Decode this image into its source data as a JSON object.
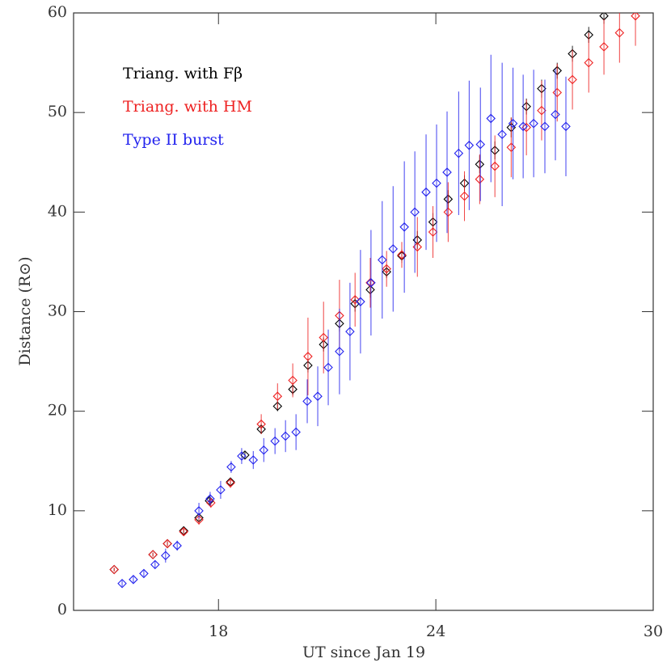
{
  "chart_data": {
    "type": "errorbar-scatter",
    "xlabel": "UT since Jan 19",
    "ylabel": "Distance (R⊙)",
    "xlim": [
      14,
      30
    ],
    "xticks": [
      18,
      24,
      30
    ],
    "ylim": [
      0,
      60
    ],
    "yticks": [
      0,
      10,
      20,
      30,
      40,
      50,
      60
    ],
    "legend": "upper left",
    "series": [
      {
        "name": "Triang. with Fβ",
        "color": "#000000",
        "x": [
          15.12,
          16.19,
          16.59,
          17.04,
          17.46,
          17.75,
          18.33,
          18.73,
          19.18,
          19.63,
          20.05,
          20.47,
          20.9,
          21.34,
          21.77,
          22.19,
          22.64,
          23.06,
          23.49,
          23.92,
          24.34,
          24.79,
          25.21,
          25.63,
          26.08,
          26.5,
          26.92,
          27.35,
          27.77,
          28.22,
          28.64
        ],
        "values": [
          4.1,
          5.6,
          6.7,
          8.0,
          9.3,
          11.0,
          12.9,
          15.6,
          18.2,
          20.5,
          22.2,
          24.6,
          26.7,
          28.8,
          30.8,
          32.2,
          34.0,
          35.6,
          37.2,
          39.0,
          41.3,
          42.9,
          44.8,
          46.2,
          48.5,
          50.6,
          52.4,
          54.2,
          55.9,
          57.8,
          59.7
        ],
        "errors": [
          0.15,
          0.2,
          0.2,
          0.2,
          0.4,
          0.3,
          0.3,
          0.3,
          0.5,
          0.5,
          0.6,
          0.7,
          0.7,
          0.8,
          0.8,
          0.8,
          0.6,
          0.7,
          0.9,
          0.9,
          0.9,
          0.8,
          0.9,
          0.9,
          1.0,
          0.8,
          0.9,
          0.8,
          0.8,
          0.8,
          0.8
        ]
      },
      {
        "name": "Triang. with HM",
        "color": "#ee2222",
        "x": [
          15.12,
          16.19,
          16.59,
          17.04,
          17.46,
          17.79,
          18.33,
          19.18,
          19.63,
          20.05,
          20.47,
          20.9,
          21.34,
          21.77,
          22.19,
          22.64,
          23.06,
          23.49,
          23.92,
          24.34,
          24.79,
          25.21,
          25.63,
          26.08,
          26.5,
          26.92,
          27.35,
          27.77,
          28.22,
          28.64,
          29.07,
          29.51
        ],
        "values": [
          4.1,
          5.6,
          6.7,
          7.9,
          9.1,
          10.8,
          12.8,
          18.7,
          21.5,
          23.1,
          25.5,
          27.4,
          29.6,
          31.2,
          32.9,
          34.3,
          35.7,
          36.5,
          38.0,
          40.0,
          41.6,
          43.3,
          44.6,
          46.5,
          48.5,
          50.2,
          52.0,
          53.3,
          55.0,
          56.6,
          58.0,
          59.7
        ],
        "errors": [
          0.2,
          0.2,
          0.3,
          0.3,
          0.5,
          0.5,
          0.5,
          1.0,
          1.3,
          1.7,
          3.9,
          3.6,
          3.6,
          2.7,
          2.5,
          1.8,
          1.3,
          3.0,
          2.6,
          3.0,
          2.5,
          2.5,
          3.1,
          3.0,
          2.8,
          3.0,
          2.9,
          3.0,
          3.0,
          2.8,
          3.0,
          3.0
        ]
      },
      {
        "name": "Type II burst",
        "color": "#2222ee",
        "x": [
          15.34,
          15.65,
          15.94,
          16.25,
          16.54,
          16.86,
          17.46,
          17.77,
          18.06,
          18.35,
          18.64,
          18.96,
          19.25,
          19.56,
          19.85,
          20.14,
          20.45,
          20.74,
          21.03,
          21.34,
          21.63,
          21.92,
          22.21,
          22.52,
          22.82,
          23.13,
          23.42,
          23.73,
          24.02,
          24.31,
          24.63,
          24.92,
          25.23,
          25.52,
          25.83,
          26.13,
          26.41,
          26.7,
          27.01,
          27.3,
          27.59
        ],
        "values": [
          2.7,
          3.1,
          3.7,
          4.6,
          5.5,
          6.5,
          10.0,
          11.2,
          12.1,
          14.4,
          15.5,
          15.1,
          16.1,
          17.0,
          17.5,
          17.9,
          21.0,
          21.5,
          24.4,
          26.0,
          28.0,
          31.0,
          32.9,
          35.2,
          36.3,
          38.5,
          40.0,
          42.0,
          42.9,
          44.0,
          45.9,
          46.7,
          46.8,
          49.4,
          47.8,
          48.9,
          48.6,
          48.9,
          48.6,
          49.8,
          48.6
        ],
        "errors": [
          0.3,
          0.3,
          0.3,
          0.4,
          0.7,
          0.5,
          0.8,
          0.7,
          0.9,
          0.6,
          0.8,
          0.9,
          1.2,
          1.3,
          1.6,
          1.8,
          2.2,
          3.0,
          3.8,
          4.3,
          4.9,
          5.2,
          5.3,
          5.9,
          6.3,
          6.6,
          6.1,
          5.8,
          5.9,
          6.1,
          6.2,
          6.5,
          5.7,
          6.4,
          7.2,
          5.6,
          5.2,
          5.4,
          4.7,
          4.6,
          5.0
        ]
      }
    ]
  }
}
